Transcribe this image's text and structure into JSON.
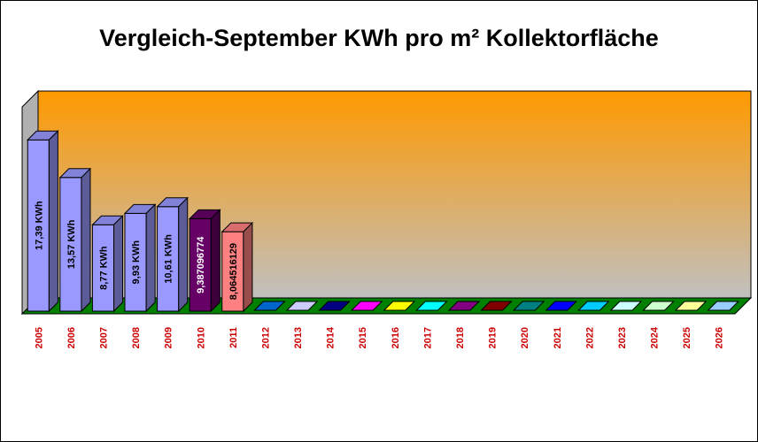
{
  "chart_data": {
    "type": "bar",
    "title": "Vergleich-September KWh pro m² Kollektorfläche",
    "xlabel": "",
    "ylabel": "",
    "ylim": [
      0,
      21
    ],
    "grid": false,
    "legend": "none",
    "categories": [
      "2005",
      "2006",
      "2007",
      "2008",
      "2009",
      "2010",
      "2011",
      "2012",
      "2013",
      "2014",
      "2015",
      "2016",
      "2017",
      "2018",
      "2019",
      "2020",
      "2021",
      "2022",
      "2023",
      "2024",
      "2025",
      "2026"
    ],
    "values": [
      17.39,
      13.57,
      8.77,
      9.93,
      10.61,
      9.387096774,
      8.064516129,
      0,
      0,
      0,
      0,
      0,
      0,
      0,
      0,
      0,
      0,
      0,
      0,
      0,
      0,
      0
    ],
    "data_labels": [
      "17,39 KWh",
      "13,57 KWh",
      "8,77 KWh",
      "9,93 KWh",
      "10,61 KWh",
      "9,387096774",
      "8,064516129",
      "",
      "",
      "",
      "",
      "",
      "",
      "",
      "",
      "",
      "",
      "",
      "",
      "",
      "",
      ""
    ],
    "colors": [
      "#9999ff",
      "#9999ff",
      "#9999ff",
      "#9999ff",
      "#9999ff",
      "#660066",
      "#ff8080",
      "#0066cc",
      "#ccccff",
      "#000080",
      "#ff00ff",
      "#ffff00",
      "#00ffff",
      "#800080",
      "#800000",
      "#008080",
      "#0000ff",
      "#00ccff",
      "#ccffff",
      "#ccffcc",
      "#ffff99",
      "#99ccff"
    ],
    "label_colors": [
      "#000000",
      "#000000",
      "#000000",
      "#000000",
      "#000000",
      "#ffffff",
      "#000000"
    ],
    "tick_color": "#cc0000",
    "wall_color_top": "#ff9900",
    "wall_color_bottom": "#c0c0c0",
    "floor_color": "#008000",
    "title_color": "#000000"
  }
}
